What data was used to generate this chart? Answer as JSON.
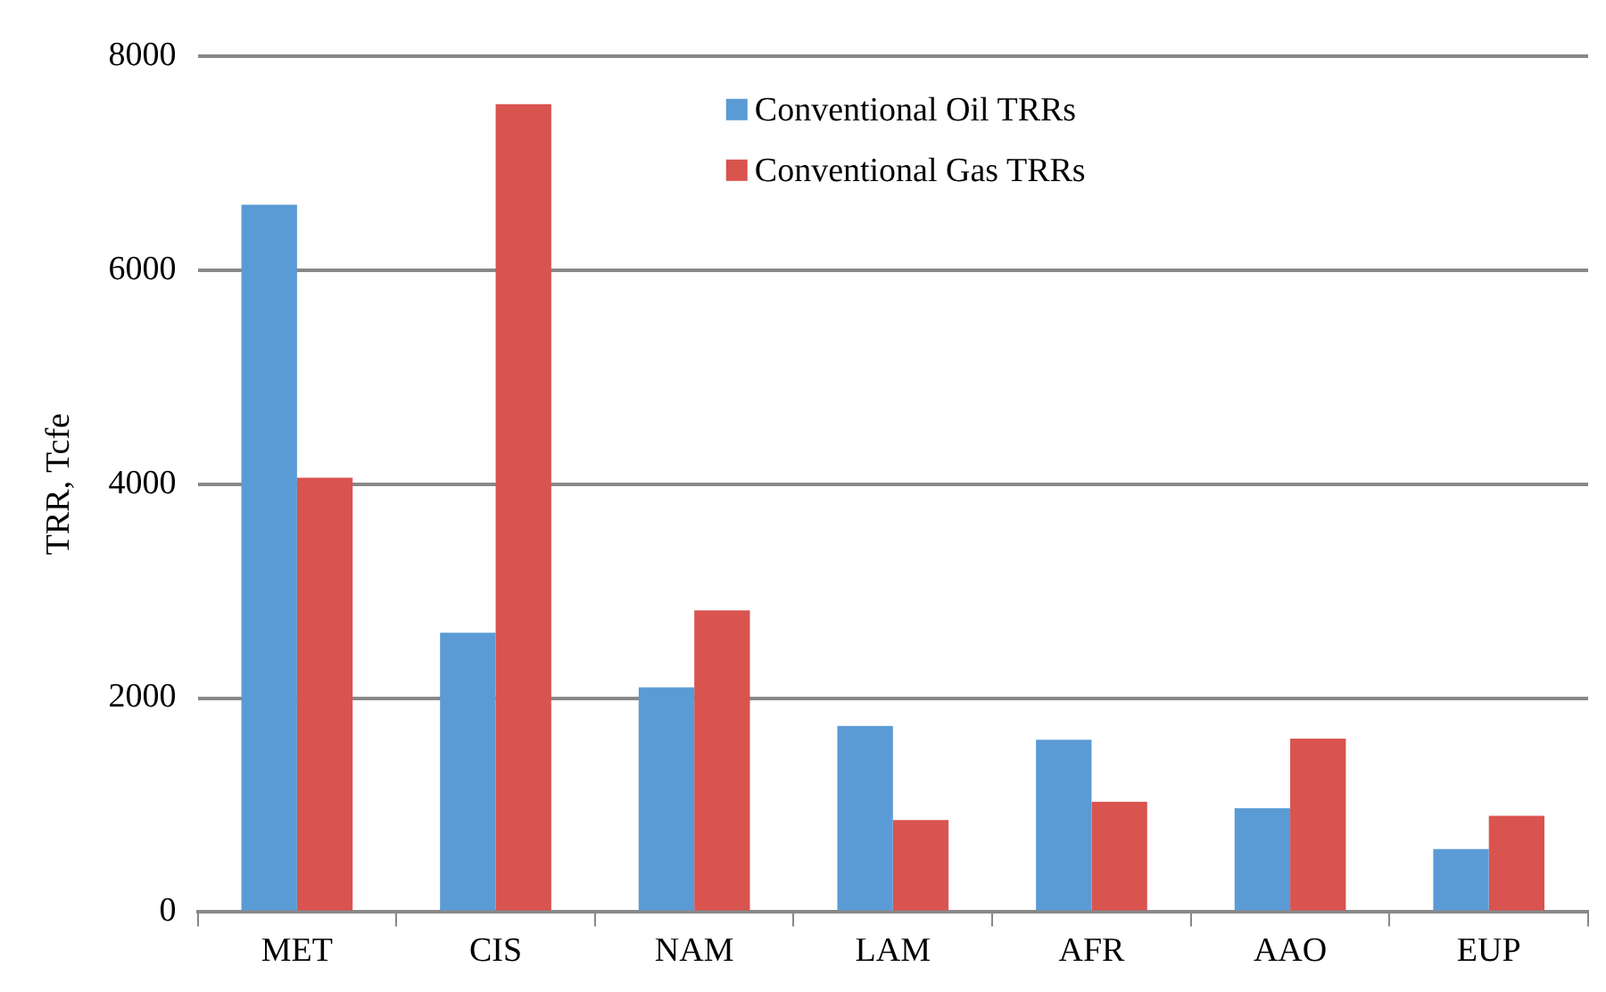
{
  "chart_data": {
    "type": "bar",
    "ylabel": "TRR, Tcfe",
    "categories": [
      "MET",
      "CIS",
      "NAM",
      "LAM",
      "AFR",
      "AAO",
      "EUP"
    ],
    "series": [
      {
        "name": "Conventional Oil TRRs",
        "color": "#5b9bd5",
        "values": [
          6610,
          2610,
          2100,
          1740,
          1610,
          970,
          590
        ]
      },
      {
        "name": "Conventional Gas TRRs",
        "color": "#d9534f",
        "values": [
          4060,
          7550,
          2820,
          860,
          1030,
          1620,
          900
        ]
      }
    ],
    "ylim": [
      0,
      8000
    ],
    "yticks": [
      0,
      2000,
      4000,
      6000,
      8000
    ],
    "grid": "y",
    "legend": "top"
  }
}
